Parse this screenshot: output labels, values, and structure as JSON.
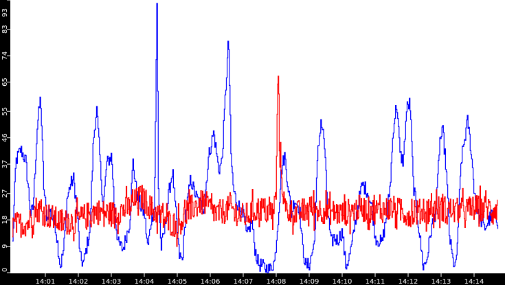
{
  "chart_data": {
    "type": "line",
    "title": "",
    "xlabel": "",
    "ylabel": "",
    "ylim": [
      0,
      93
    ],
    "grid": false,
    "legend": null,
    "y_ticks": [
      0,
      9,
      18,
      27,
      37,
      46,
      55,
      65,
      74,
      83,
      93
    ],
    "x_ticks": [
      "14:01",
      "14:02",
      "14:03",
      "14:04",
      "14:05",
      "14:06",
      "14:07",
      "14:08",
      "14:09",
      "14:10",
      "14:11",
      "14:12",
      "14:13",
      "14:14"
    ],
    "x_range": [
      "14:00:00",
      "14:14:45"
    ],
    "colors": {
      "background": "#000000",
      "plot": "#ffffff",
      "series_blue": "#0000ff",
      "series_red": "#ff0000",
      "axis_text": "#ffffff"
    },
    "series": [
      {
        "name": "blue",
        "color": "#0000ff",
        "keyframes_t_v": [
          [
            0.0,
            10
          ],
          [
            0.1,
            38
          ],
          [
            0.25,
            42
          ],
          [
            0.4,
            38
          ],
          [
            0.55,
            20
          ],
          [
            0.62,
            22
          ],
          [
            0.75,
            50
          ],
          [
            0.85,
            60
          ],
          [
            0.95,
            28
          ],
          [
            1.05,
            18
          ],
          [
            1.1,
            22
          ],
          [
            1.3,
            16
          ],
          [
            1.45,
            2
          ],
          [
            1.55,
            8
          ],
          [
            1.65,
            25
          ],
          [
            1.75,
            30
          ],
          [
            1.85,
            32
          ],
          [
            1.95,
            22
          ],
          [
            2.05,
            5
          ],
          [
            2.15,
            3
          ],
          [
            2.35,
            15
          ],
          [
            2.45,
            45
          ],
          [
            2.55,
            56
          ],
          [
            2.65,
            38
          ],
          [
            2.75,
            22
          ],
          [
            2.85,
            37
          ],
          [
            3.0,
            40
          ],
          [
            3.1,
            20
          ],
          [
            3.2,
            10
          ],
          [
            3.35,
            8
          ],
          [
            3.55,
            17
          ],
          [
            3.65,
            38
          ],
          [
            3.75,
            28
          ],
          [
            3.9,
            22
          ],
          [
            4.0,
            20
          ],
          [
            4.1,
            8
          ],
          [
            4.2,
            18
          ],
          [
            4.3,
            22
          ],
          [
            4.38,
            93
          ],
          [
            4.42,
            30
          ],
          [
            4.5,
            8
          ],
          [
            4.6,
            14
          ],
          [
            4.75,
            28
          ],
          [
            4.85,
            35
          ],
          [
            4.95,
            20
          ],
          [
            5.05,
            6
          ],
          [
            5.15,
            4
          ],
          [
            5.25,
            20
          ],
          [
            5.4,
            32
          ],
          [
            5.5,
            28
          ],
          [
            5.6,
            25
          ],
          [
            5.8,
            22
          ],
          [
            5.95,
            40
          ],
          [
            6.1,
            48
          ],
          [
            6.25,
            35
          ],
          [
            6.35,
            38
          ],
          [
            6.45,
            60
          ],
          [
            6.55,
            80
          ],
          [
            6.62,
            40
          ],
          [
            6.7,
            28
          ],
          [
            6.8,
            24
          ],
          [
            6.9,
            22
          ],
          [
            7.0,
            20
          ],
          [
            7.1,
            12
          ],
          [
            7.25,
            18
          ],
          [
            7.35,
            8
          ],
          [
            7.45,
            3
          ],
          [
            7.6,
            2
          ],
          [
            7.8,
            1
          ],
          [
            7.95,
            4
          ],
          [
            8.05,
            18
          ],
          [
            8.15,
            35
          ],
          [
            8.25,
            40
          ],
          [
            8.35,
            30
          ],
          [
            8.45,
            20
          ],
          [
            8.55,
            25
          ],
          [
            8.7,
            22
          ],
          [
            8.8,
            8
          ],
          [
            8.9,
            2
          ],
          [
            9.0,
            3
          ],
          [
            9.15,
            10
          ],
          [
            9.25,
            40
          ],
          [
            9.35,
            52
          ],
          [
            9.45,
            45
          ],
          [
            9.55,
            22
          ],
          [
            9.65,
            10
          ],
          [
            9.75,
            12
          ],
          [
            9.85,
            11
          ],
          [
            10.0,
            14
          ],
          [
            10.1,
            2
          ],
          [
            10.2,
            5
          ],
          [
            10.3,
            10
          ],
          [
            10.45,
            22
          ],
          [
            10.6,
            30
          ],
          [
            10.75,
            28
          ],
          [
            10.9,
            22
          ],
          [
            11.0,
            12
          ],
          [
            11.2,
            10
          ],
          [
            11.35,
            20
          ],
          [
            11.45,
            30
          ],
          [
            11.55,
            50
          ],
          [
            11.65,
            58
          ],
          [
            11.75,
            40
          ],
          [
            11.85,
            38
          ],
          [
            11.95,
            56
          ],
          [
            12.05,
            58
          ],
          [
            12.15,
            30
          ],
          [
            12.25,
            22
          ],
          [
            12.35,
            12
          ],
          [
            12.45,
            2
          ],
          [
            12.55,
            4
          ],
          [
            12.7,
            15
          ],
          [
            12.85,
            22
          ],
          [
            12.95,
            45
          ],
          [
            13.05,
            48
          ],
          [
            13.15,
            35
          ],
          [
            13.25,
            12
          ],
          [
            13.35,
            4
          ],
          [
            13.45,
            2
          ],
          [
            13.6,
            38
          ],
          [
            13.7,
            45
          ],
          [
            13.8,
            52
          ],
          [
            13.9,
            42
          ],
          [
            14.0,
            28
          ],
          [
            14.1,
            20
          ],
          [
            14.2,
            18
          ],
          [
            14.3,
            15
          ],
          [
            14.45,
            18
          ],
          [
            14.55,
            20
          ],
          [
            14.72,
            17
          ]
        ]
      },
      {
        "name": "red",
        "color": "#ff0000",
        "keyframes_t_v": [
          [
            0.0,
            16
          ],
          [
            0.5,
            17
          ],
          [
            0.7,
            22
          ],
          [
            1.0,
            20
          ],
          [
            1.5,
            17
          ],
          [
            2.0,
            18
          ],
          [
            2.5,
            21
          ],
          [
            3.0,
            20
          ],
          [
            3.5,
            22
          ],
          [
            3.9,
            26
          ],
          [
            4.2,
            22
          ],
          [
            4.6,
            18
          ],
          [
            5.0,
            16
          ],
          [
            5.4,
            22
          ],
          [
            5.8,
            24
          ],
          [
            6.2,
            20
          ],
          [
            6.6,
            22
          ],
          [
            7.0,
            19
          ],
          [
            7.5,
            22
          ],
          [
            7.9,
            20
          ],
          [
            8.0,
            28
          ],
          [
            8.05,
            74
          ],
          [
            8.1,
            40
          ],
          [
            8.25,
            22
          ],
          [
            8.6,
            20
          ],
          [
            9.0,
            22
          ],
          [
            9.5,
            21
          ],
          [
            10.0,
            20
          ],
          [
            10.5,
            22
          ],
          [
            11.0,
            21
          ],
          [
            11.5,
            22
          ],
          [
            12.0,
            20
          ],
          [
            12.5,
            21
          ],
          [
            13.0,
            22
          ],
          [
            13.5,
            21
          ],
          [
            14.0,
            22
          ],
          [
            14.72,
            22
          ]
        ]
      }
    ]
  },
  "axes": {
    "y_labels": [
      "0",
      "9",
      "18",
      "27",
      "37",
      "46",
      "55",
      "65",
      "74",
      "83",
      "93"
    ],
    "x_labels": [
      "14:01",
      "14:02",
      "14:03",
      "14:04",
      "14:05",
      "14:06",
      "14:07",
      "14:08",
      "14:09",
      "14:10",
      "14:11",
      "14:12",
      "14:13",
      "14:14"
    ]
  }
}
